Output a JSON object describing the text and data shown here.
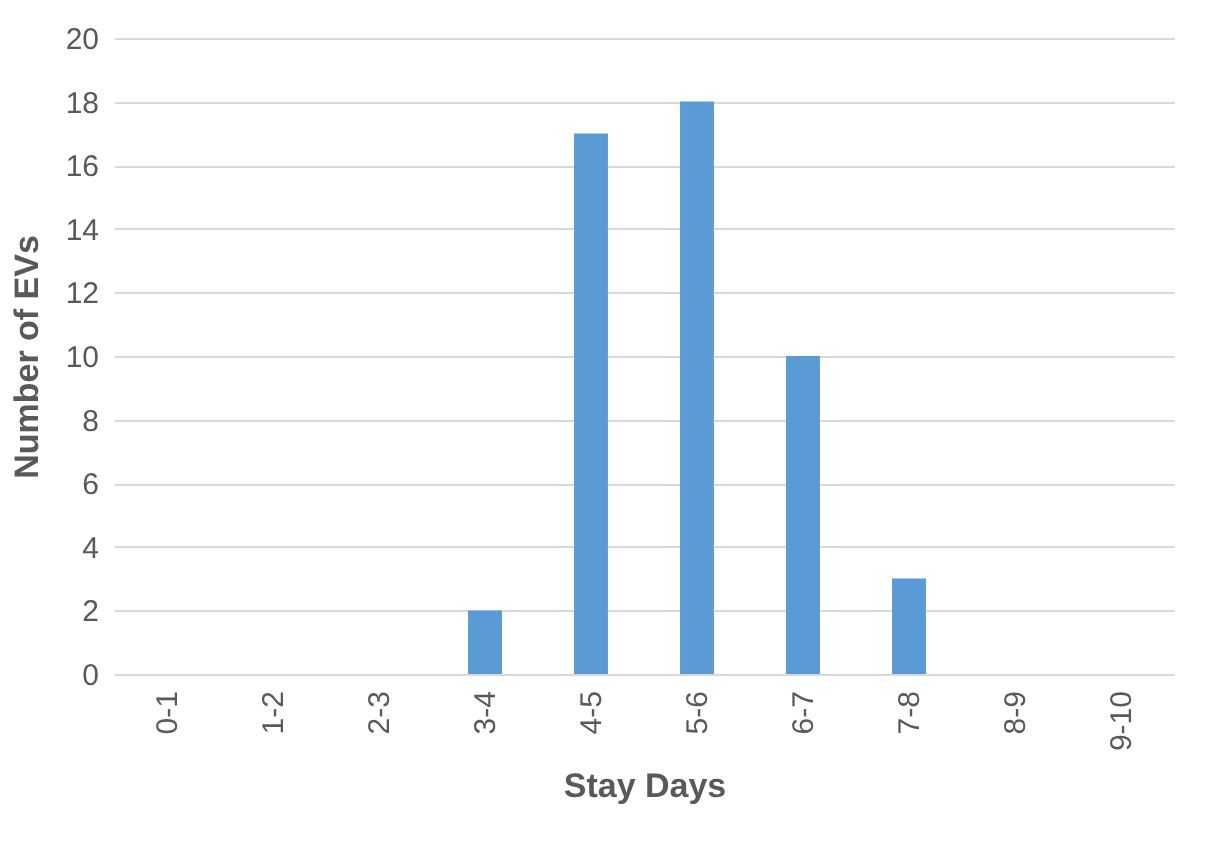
{
  "chart_data": {
    "type": "bar",
    "xlabel": "Stay Days",
    "ylabel": "Number of EVs",
    "categories": [
      "0-1",
      "1-2",
      "2-3",
      "3-4",
      "4-5",
      "5-6",
      "6-7",
      "7-8",
      "8-9",
      "9-10"
    ],
    "values": [
      0,
      0,
      0,
      2,
      17,
      18,
      10,
      3,
      0,
      0
    ],
    "color": "#5b9bd5",
    "ylim": [
      0,
      20
    ],
    "yticks": [
      0,
      2,
      4,
      6,
      8,
      10,
      12,
      14,
      16,
      18,
      20
    ],
    "grid": "y"
  }
}
